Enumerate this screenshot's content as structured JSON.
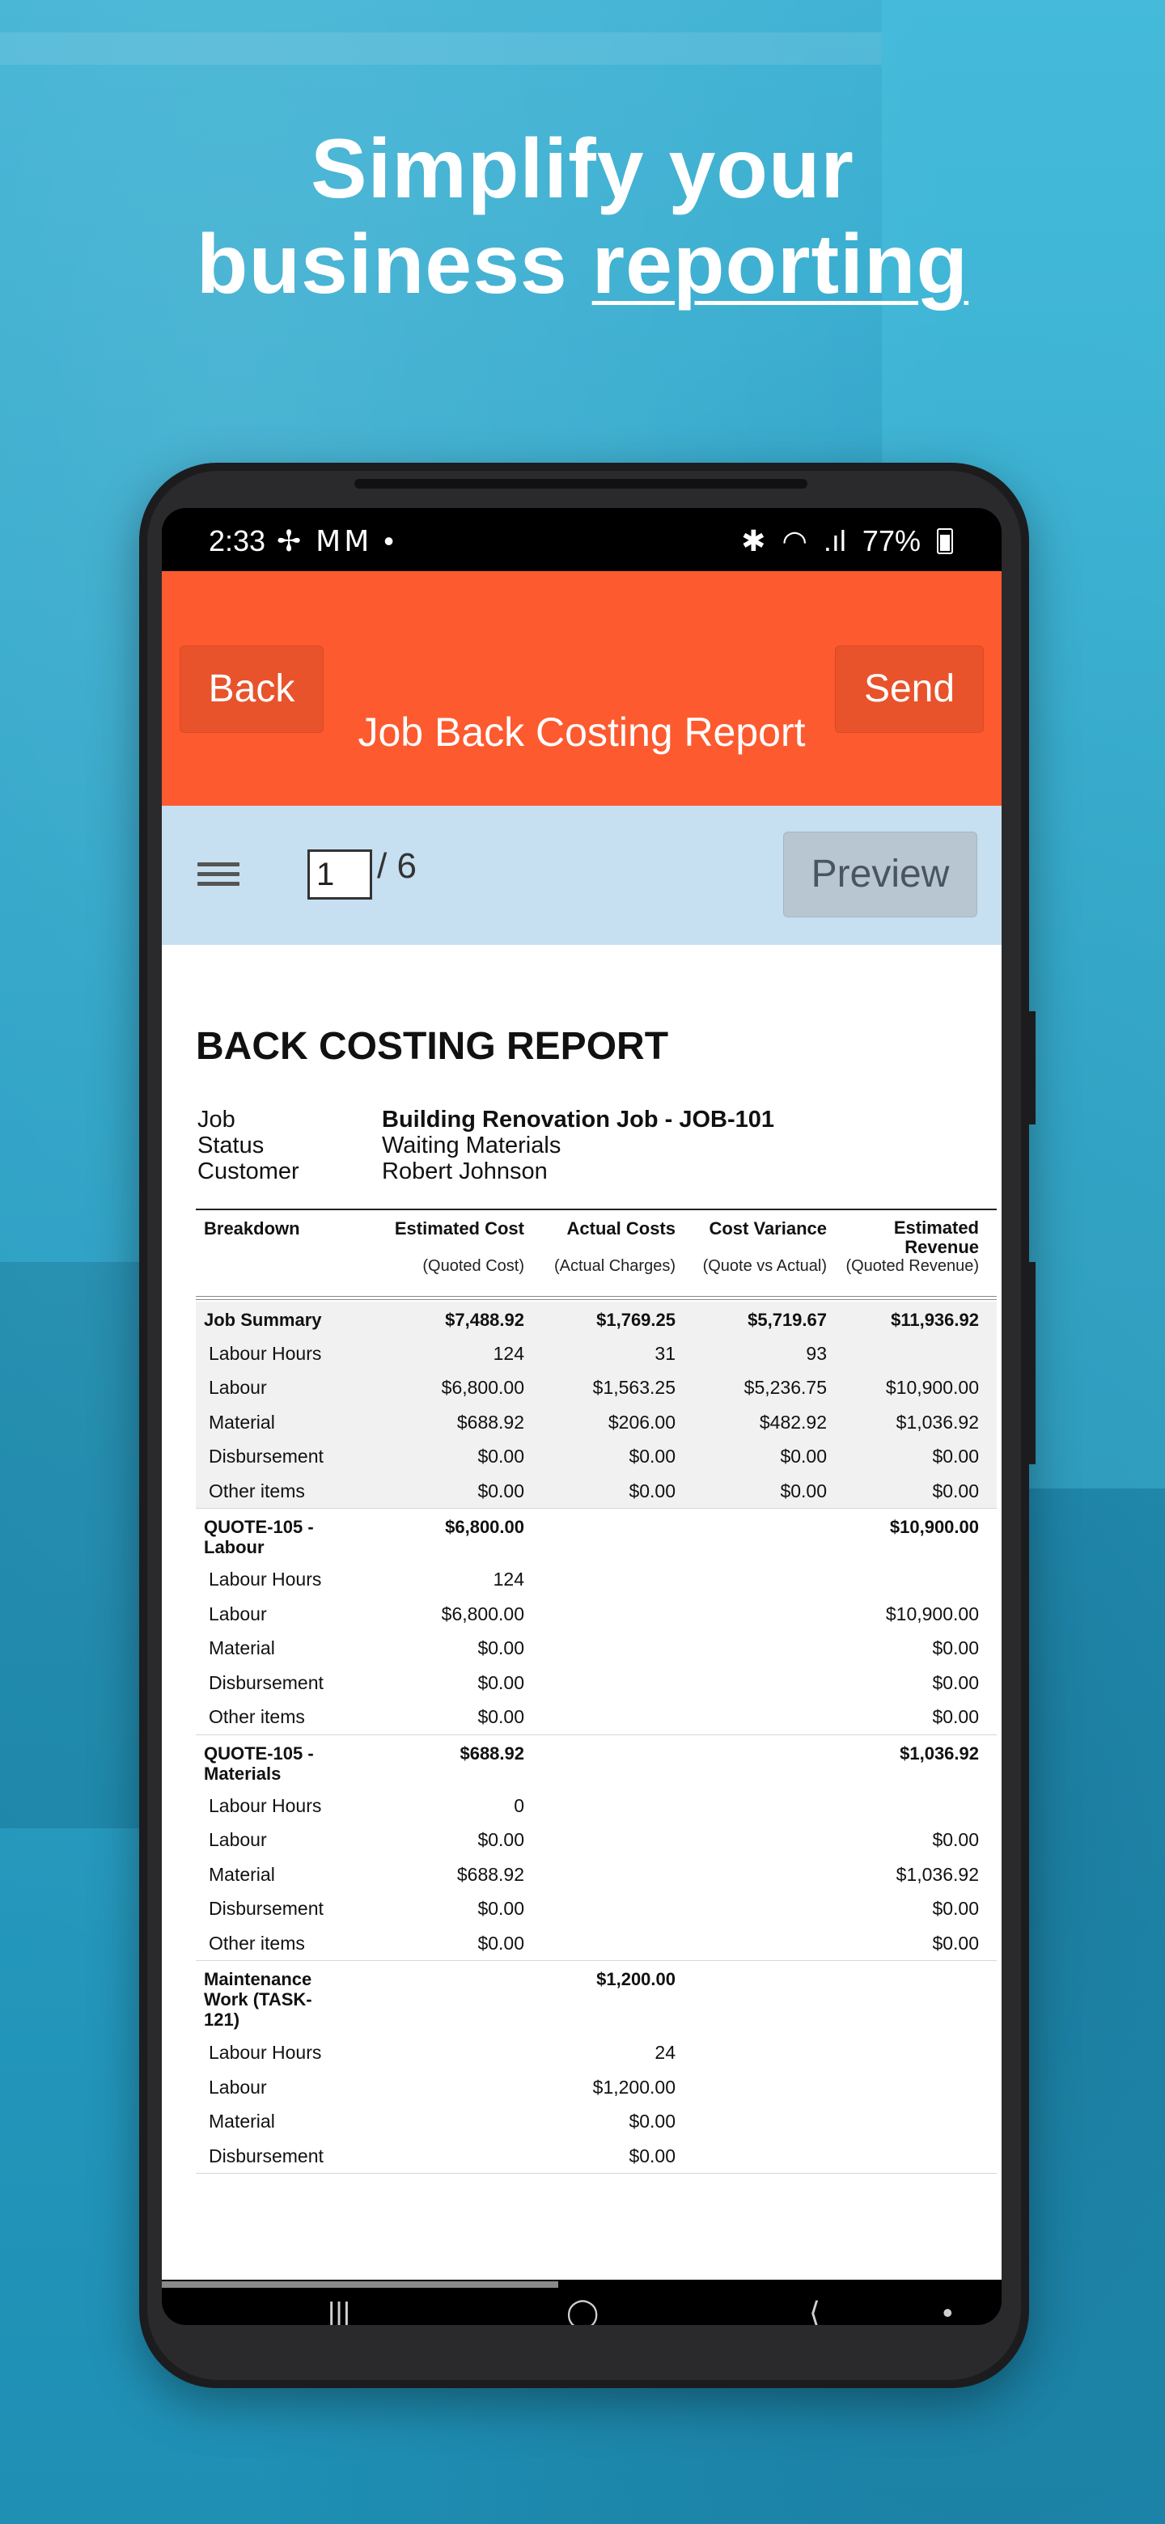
{
  "headline": {
    "line1": "Simplify your",
    "line2a": "business ",
    "line2b": "reporting"
  },
  "status": {
    "time": "2:33",
    "left_icons": "✢ ⅯⅯ •",
    "bt": "✱",
    "wifi": "◠",
    "signal": ".ıl",
    "battery": "77%"
  },
  "header": {
    "back_label": "Back",
    "send_label": "Send",
    "title": "Job Back Costing Report"
  },
  "toolbar": {
    "page_value": "1",
    "page_total": "/ 6",
    "preview_label": "Preview"
  },
  "report": {
    "title": "BACK COSTING REPORT",
    "meta": [
      {
        "k": "Job",
        "v": "Building Renovation Job - JOB-101",
        "bold": true
      },
      {
        "k": "Status",
        "v": "Waiting Materials",
        "bold": false
      },
      {
        "k": "Customer",
        "v": "Robert Johnson",
        "bold": false
      }
    ],
    "columns": {
      "breakdown": "Breakdown",
      "est_cost": "Estimated Cost",
      "est_cost_sub": "(Quoted Cost)",
      "actual": "Actual Costs",
      "actual_sub": "(Actual Charges)",
      "variance": "Cost Variance",
      "variance_sub": "(Quote vs Actual)",
      "revenue": "Estimated\nRevenue",
      "revenue_sub": "(Quoted Revenue)"
    },
    "groups": [
      {
        "label": "Job Summary",
        "shaded": true,
        "head": [
          "$7,488.92",
          "$1,769.25",
          "$5,719.67",
          "$11,936.92"
        ],
        "rows": [
          [
            "Labour Hours",
            "124",
            "31",
            "93",
            ""
          ],
          [
            "Labour",
            "$6,800.00",
            "$1,563.25",
            "$5,236.75",
            "$10,900.00"
          ],
          [
            "Material",
            "$688.92",
            "$206.00",
            "$482.92",
            "$1,036.92"
          ],
          [
            "Disbursement",
            "$0.00",
            "$0.00",
            "$0.00",
            "$0.00"
          ],
          [
            "Other items",
            "$0.00",
            "$0.00",
            "$0.00",
            "$0.00"
          ]
        ]
      },
      {
        "label": "QUOTE-105 -\nLabour",
        "shaded": false,
        "head": [
          "$6,800.00",
          "",
          "",
          "$10,900.00"
        ],
        "rows": [
          [
            "Labour Hours",
            "124",
            "",
            "",
            ""
          ],
          [
            "Labour",
            "$6,800.00",
            "",
            "",
            "$10,900.00"
          ],
          [
            "Material",
            "$0.00",
            "",
            "",
            "$0.00"
          ],
          [
            "Disbursement",
            "$0.00",
            "",
            "",
            "$0.00"
          ],
          [
            "Other items",
            "$0.00",
            "",
            "",
            "$0.00"
          ]
        ]
      },
      {
        "label": "QUOTE-105 -\nMaterials",
        "shaded": false,
        "head": [
          "$688.92",
          "",
          "",
          "$1,036.92"
        ],
        "rows": [
          [
            "Labour Hours",
            "0",
            "",
            "",
            ""
          ],
          [
            "Labour",
            "$0.00",
            "",
            "",
            "$0.00"
          ],
          [
            "Material",
            "$688.92",
            "",
            "",
            "$1,036.92"
          ],
          [
            "Disbursement",
            "$0.00",
            "",
            "",
            "$0.00"
          ],
          [
            "Other items",
            "$0.00",
            "",
            "",
            "$0.00"
          ]
        ]
      },
      {
        "label": "Maintenance\nWork (TASK-\n121)",
        "shaded": false,
        "head": [
          "",
          "$1,200.00",
          "",
          ""
        ],
        "rows": [
          [
            "Labour Hours",
            "",
            "24",
            "",
            ""
          ],
          [
            "Labour",
            "",
            "$1,200.00",
            "",
            ""
          ],
          [
            "Material",
            "",
            "$0.00",
            "",
            ""
          ],
          [
            "Disbursement",
            "",
            "$0.00",
            "",
            ""
          ]
        ]
      }
    ]
  },
  "navbar": {
    "recent": "|||",
    "home": "◯",
    "back": "⟨",
    "more": "•"
  }
}
